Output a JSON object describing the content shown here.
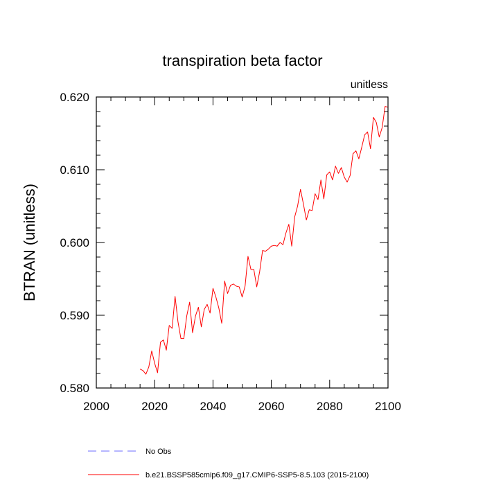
{
  "chart_data": {
    "type": "line",
    "title": "transpiration beta factor",
    "units_label": "unitless",
    "ylabel": "BTRAN  (unitless)",
    "xlabel": "",
    "xlim": [
      2000,
      2100
    ],
    "ylim": [
      0.58,
      0.62
    ],
    "x_ticks": [
      2000,
      2020,
      2040,
      2060,
      2080,
      2100
    ],
    "x_tick_labels": [
      "2000",
      "2020",
      "2040",
      "2060",
      "2080",
      "2100"
    ],
    "y_ticks": [
      0.58,
      0.59,
      0.6,
      0.61,
      0.62
    ],
    "y_tick_labels": [
      "0.580",
      "0.590",
      "0.600",
      "0.610",
      "0.620"
    ],
    "grid": false,
    "legend_position": "bottom",
    "series": [
      {
        "name": "No Obs",
        "color": "#6b6bff",
        "style": "dashed",
        "x": [],
        "values": []
      },
      {
        "name": "b.e21.BSSP585cmip6.f09_g17.CMIP6-SSP5-8.5.103 (2015-2100)",
        "color": "#ff0000",
        "style": "solid",
        "x": [
          2015,
          2016,
          2017,
          2018,
          2019,
          2020,
          2021,
          2022,
          2023,
          2024,
          2025,
          2026,
          2027,
          2028,
          2029,
          2030,
          2031,
          2032,
          2033,
          2034,
          2035,
          2036,
          2037,
          2038,
          2039,
          2040,
          2041,
          2042,
          2043,
          2044,
          2045,
          2046,
          2047,
          2048,
          2049,
          2050,
          2051,
          2052,
          2053,
          2054,
          2055,
          2056,
          2057,
          2058,
          2059,
          2060,
          2061,
          2062,
          2063,
          2064,
          2065,
          2066,
          2067,
          2068,
          2069,
          2070,
          2071,
          2072,
          2073,
          2074,
          2075,
          2076,
          2077,
          2078,
          2079,
          2080,
          2081,
          2082,
          2083,
          2084,
          2085,
          2086,
          2087,
          2088,
          2089,
          2090,
          2091,
          2092,
          2093,
          2094,
          2095,
          2096,
          2097,
          2098,
          2099,
          2100
        ],
        "values": [
          0.5826,
          0.5824,
          0.5819,
          0.5829,
          0.5851,
          0.5834,
          0.5821,
          0.5863,
          0.5866,
          0.5852,
          0.5886,
          0.5882,
          0.5926,
          0.5891,
          0.5868,
          0.5868,
          0.5899,
          0.5918,
          0.5876,
          0.5899,
          0.5911,
          0.5884,
          0.5908,
          0.5915,
          0.5903,
          0.5937,
          0.5925,
          0.591,
          0.5889,
          0.5947,
          0.593,
          0.5941,
          0.5943,
          0.594,
          0.5939,
          0.5925,
          0.594,
          0.5981,
          0.5963,
          0.5963,
          0.5939,
          0.596,
          0.5989,
          0.5988,
          0.5991,
          0.5995,
          0.5996,
          0.5995,
          0.6,
          0.5997,
          0.6013,
          0.6025,
          0.5995,
          0.6035,
          0.605,
          0.6073,
          0.6053,
          0.6031,
          0.6045,
          0.6044,
          0.6067,
          0.6059,
          0.6086,
          0.606,
          0.6093,
          0.6097,
          0.6086,
          0.6105,
          0.6095,
          0.6103,
          0.609,
          0.6083,
          0.6092,
          0.6122,
          0.6126,
          0.6115,
          0.6131,
          0.6148,
          0.6152,
          0.6129,
          0.6172,
          0.6165,
          0.6145,
          0.6158,
          0.6187,
          0.6186
        ]
      }
    ]
  }
}
